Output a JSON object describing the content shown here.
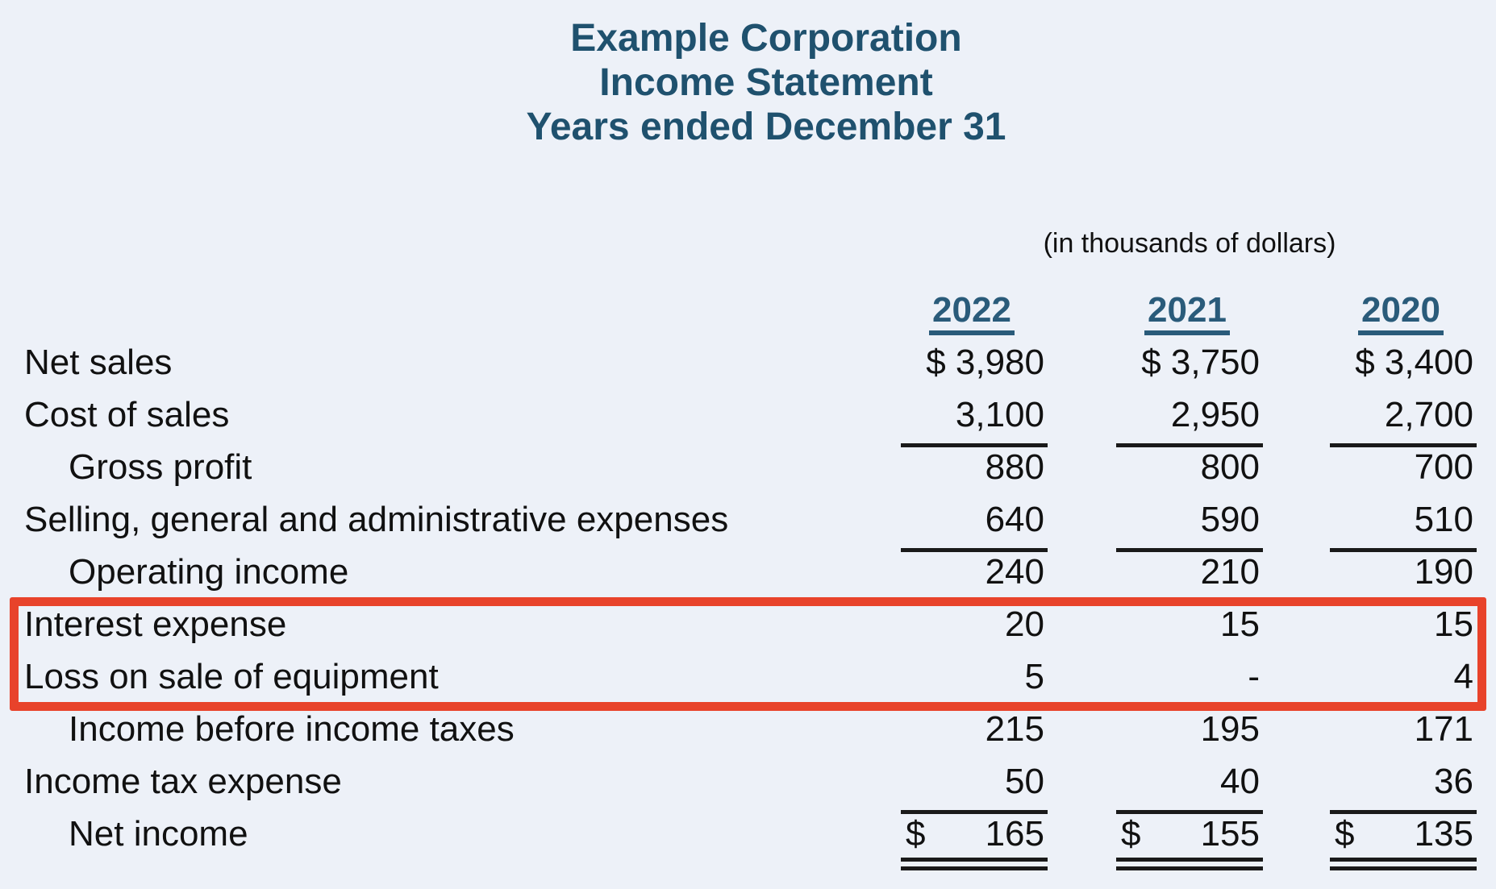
{
  "colors": {
    "background": "#edf1f8",
    "title": "#1f516e",
    "year_header": "#2a5b7a",
    "text": "#111111",
    "rule": "#1a1a1a",
    "highlight_box": "#e8432b"
  },
  "title": {
    "company": "Example Corporation",
    "statement": "Income Statement",
    "period": "Years ended December 31"
  },
  "units_note": "(in thousands of dollars)",
  "years": [
    "2022",
    "2021",
    "2020"
  ],
  "rows": [
    {
      "label": "Net sales",
      "indent": false,
      "values": [
        "$ 3,980",
        "$ 3,750",
        "$ 3,400"
      ],
      "underline": "none",
      "highlighted": false,
      "split_dollar": false
    },
    {
      "label": "Cost of sales",
      "indent": false,
      "values": [
        "3,100",
        "2,950",
        "2,700"
      ],
      "underline": "single",
      "highlighted": false,
      "split_dollar": false
    },
    {
      "label": "Gross profit",
      "indent": true,
      "values": [
        "880",
        "800",
        "700"
      ],
      "underline": "none",
      "highlighted": false,
      "split_dollar": false
    },
    {
      "label": "Selling, general and administrative expenses",
      "indent": false,
      "values": [
        "640",
        "590",
        "510"
      ],
      "underline": "single",
      "highlighted": false,
      "split_dollar": false
    },
    {
      "label": "Operating income",
      "indent": true,
      "values": [
        "240",
        "210",
        "190"
      ],
      "underline": "none",
      "highlighted": false,
      "split_dollar": false
    },
    {
      "label": "Interest expense",
      "indent": false,
      "values": [
        "20",
        "15",
        "15"
      ],
      "underline": "none",
      "highlighted": true,
      "split_dollar": false
    },
    {
      "label": "Loss on sale of equipment",
      "indent": false,
      "values": [
        "5",
        "-",
        "4"
      ],
      "underline": "single",
      "highlighted": true,
      "split_dollar": false
    },
    {
      "label": "Income before income taxes",
      "indent": true,
      "values": [
        "215",
        "195",
        "171"
      ],
      "underline": "none",
      "highlighted": false,
      "split_dollar": false
    },
    {
      "label": "Income tax expense",
      "indent": false,
      "values": [
        "50",
        "40",
        "36"
      ],
      "underline": "single",
      "highlighted": false,
      "split_dollar": false
    },
    {
      "label": "Net income",
      "indent": true,
      "values": [
        "165",
        "155",
        "135"
      ],
      "underline": "double",
      "highlighted": false,
      "split_dollar": true
    }
  ],
  "highlight": {
    "color": "#e8432b",
    "rows": [
      "Interest expense",
      "Loss on sale of equipment"
    ]
  }
}
